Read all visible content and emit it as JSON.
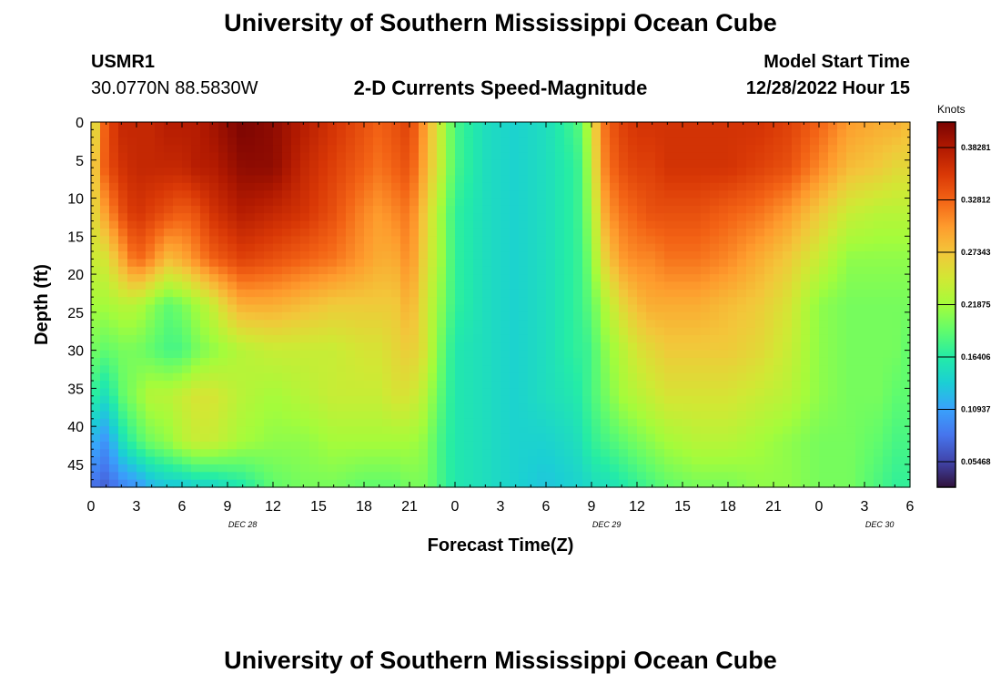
{
  "header": {
    "title": "University of Southern Mississippi Ocean Cube",
    "station_id": "USMR1",
    "station_coords": "30.0770N  88.5830W",
    "subtitle": "2-D Currents Speed-Magnitude",
    "model_start_label": "Model Start Time",
    "model_start_value": "12/28/2022 Hour 15"
  },
  "footer": {
    "title_repeat": "University of Southern Mississippi Ocean Cube"
  },
  "chart_data": {
    "type": "heatmap",
    "title": "2-D Currents Speed-Magnitude",
    "xlabel": "Forecast Time(Z)",
    "ylabel": "Depth (ft)",
    "x_start": "12/28/2022 00Z",
    "x_tick_labels": [
      "0",
      "3",
      "6",
      "9",
      "12",
      "15",
      "18",
      "21",
      "0",
      "3",
      "6",
      "9",
      "12",
      "15",
      "18",
      "21",
      "0",
      "3",
      "6"
    ],
    "x_date_labels": [
      {
        "label": "DEC 28",
        "hour": 10
      },
      {
        "label": "DEC 29",
        "hour": 34
      },
      {
        "label": "DEC 30",
        "hour": 52
      }
    ],
    "xlim": [
      0,
      54
    ],
    "y_ticks": [
      0,
      5,
      10,
      15,
      20,
      25,
      30,
      35,
      40,
      45
    ],
    "ylim": [
      0,
      48
    ],
    "y_inverted": true,
    "colorbar": {
      "units": "Knots",
      "tick_labels": [
        "0.38281",
        "0.32812",
        "0.27343",
        "0.21875",
        "0.16406",
        "0.10937",
        "0.05468"
      ],
      "min": 0.0273,
      "max": 0.4102,
      "colors": [
        "#30123b",
        "#4145ab",
        "#4675ed",
        "#39a2fc",
        "#1bcfd4",
        "#24eca6",
        "#61fc6c",
        "#a4fc3b",
        "#d1e834",
        "#f3c63a",
        "#fe9b2d",
        "#f36315",
        "#d93806",
        "#b11901",
        "#7a0402"
      ]
    },
    "depths_ft": [
      0,
      6,
      12,
      18,
      24,
      30,
      36,
      42,
      48
    ],
    "hours": [
      0,
      1,
      2,
      3,
      4,
      5,
      6,
      7,
      8,
      9,
      10,
      12,
      14,
      16,
      18,
      19,
      20,
      21,
      22,
      23,
      24,
      26,
      28,
      30,
      32,
      32.5,
      33,
      34,
      35,
      36,
      37,
      38,
      40,
      42,
      44,
      46,
      48,
      50,
      52,
      53,
      54
    ],
    "speed_knots": [
      [
        0.23,
        0.25,
        0.25,
        0.24,
        0.22,
        0.2,
        0.17,
        0.12,
        0.08
      ],
      [
        0.34,
        0.34,
        0.3,
        0.25,
        0.22,
        0.19,
        0.15,
        0.1,
        0.07
      ],
      [
        0.37,
        0.36,
        0.34,
        0.29,
        0.23,
        0.2,
        0.19,
        0.15,
        0.09
      ],
      [
        0.37,
        0.37,
        0.36,
        0.33,
        0.23,
        0.2,
        0.21,
        0.18,
        0.1
      ],
      [
        0.37,
        0.37,
        0.35,
        0.31,
        0.21,
        0.19,
        0.23,
        0.2,
        0.12
      ],
      [
        0.38,
        0.37,
        0.34,
        0.28,
        0.19,
        0.18,
        0.23,
        0.21,
        0.13
      ],
      [
        0.38,
        0.37,
        0.33,
        0.29,
        0.2,
        0.18,
        0.24,
        0.23,
        0.13
      ],
      [
        0.38,
        0.38,
        0.34,
        0.31,
        0.22,
        0.2,
        0.25,
        0.24,
        0.14
      ],
      [
        0.39,
        0.38,
        0.36,
        0.33,
        0.24,
        0.21,
        0.25,
        0.24,
        0.14
      ],
      [
        0.4,
        0.39,
        0.37,
        0.34,
        0.27,
        0.22,
        0.24,
        0.23,
        0.15
      ],
      [
        0.41,
        0.4,
        0.38,
        0.35,
        0.29,
        0.23,
        0.23,
        0.22,
        0.16
      ],
      [
        0.4,
        0.4,
        0.37,
        0.34,
        0.29,
        0.24,
        0.22,
        0.21,
        0.19
      ],
      [
        0.38,
        0.37,
        0.36,
        0.33,
        0.28,
        0.24,
        0.23,
        0.21,
        0.2
      ],
      [
        0.36,
        0.35,
        0.34,
        0.32,
        0.27,
        0.24,
        0.24,
        0.22,
        0.2
      ],
      [
        0.34,
        0.33,
        0.31,
        0.3,
        0.27,
        0.25,
        0.24,
        0.22,
        0.19
      ],
      [
        0.33,
        0.32,
        0.3,
        0.29,
        0.27,
        0.25,
        0.24,
        0.22,
        0.19
      ],
      [
        0.34,
        0.33,
        0.31,
        0.29,
        0.27,
        0.26,
        0.25,
        0.22,
        0.19
      ],
      [
        0.35,
        0.34,
        0.32,
        0.31,
        0.29,
        0.27,
        0.25,
        0.22,
        0.2
      ],
      [
        0.3,
        0.29,
        0.27,
        0.26,
        0.25,
        0.25,
        0.23,
        0.21,
        0.2
      ],
      [
        0.24,
        0.24,
        0.22,
        0.22,
        0.21,
        0.2,
        0.19,
        0.18,
        0.18
      ],
      [
        0.18,
        0.18,
        0.17,
        0.17,
        0.17,
        0.16,
        0.16,
        0.16,
        0.16
      ],
      [
        0.15,
        0.15,
        0.15,
        0.15,
        0.15,
        0.15,
        0.15,
        0.15,
        0.15
      ],
      [
        0.14,
        0.14,
        0.14,
        0.14,
        0.14,
        0.14,
        0.14,
        0.14,
        0.14
      ],
      [
        0.15,
        0.15,
        0.15,
        0.15,
        0.15,
        0.15,
        0.15,
        0.14,
        0.13
      ],
      [
        0.18,
        0.17,
        0.17,
        0.17,
        0.17,
        0.17,
        0.16,
        0.15,
        0.14
      ],
      [
        0.2,
        0.19,
        0.19,
        0.18,
        0.18,
        0.17,
        0.17,
        0.16,
        0.14
      ],
      [
        0.25,
        0.24,
        0.22,
        0.21,
        0.19,
        0.18,
        0.18,
        0.17,
        0.15
      ],
      [
        0.33,
        0.32,
        0.3,
        0.27,
        0.23,
        0.21,
        0.2,
        0.18,
        0.15
      ],
      [
        0.35,
        0.34,
        0.32,
        0.3,
        0.26,
        0.23,
        0.22,
        0.19,
        0.16
      ],
      [
        0.36,
        0.35,
        0.33,
        0.31,
        0.28,
        0.25,
        0.23,
        0.2,
        0.17
      ],
      [
        0.36,
        0.35,
        0.34,
        0.31,
        0.29,
        0.26,
        0.24,
        0.21,
        0.18
      ],
      [
        0.36,
        0.36,
        0.34,
        0.32,
        0.29,
        0.27,
        0.25,
        0.22,
        0.19
      ],
      [
        0.36,
        0.36,
        0.34,
        0.32,
        0.29,
        0.27,
        0.25,
        0.23,
        0.2
      ],
      [
        0.36,
        0.36,
        0.33,
        0.31,
        0.28,
        0.27,
        0.25,
        0.23,
        0.2
      ],
      [
        0.36,
        0.35,
        0.32,
        0.29,
        0.27,
        0.26,
        0.24,
        0.22,
        0.21
      ],
      [
        0.35,
        0.34,
        0.3,
        0.27,
        0.25,
        0.24,
        0.23,
        0.21,
        0.21
      ],
      [
        0.33,
        0.31,
        0.27,
        0.24,
        0.21,
        0.21,
        0.21,
        0.2,
        0.2
      ],
      [
        0.3,
        0.28,
        0.24,
        0.21,
        0.2,
        0.2,
        0.2,
        0.2,
        0.2
      ],
      [
        0.29,
        0.27,
        0.23,
        0.21,
        0.2,
        0.2,
        0.2,
        0.19,
        0.18
      ],
      [
        0.29,
        0.26,
        0.23,
        0.21,
        0.2,
        0.2,
        0.19,
        0.18,
        0.17
      ],
      [
        0.28,
        0.26,
        0.23,
        0.21,
        0.2,
        0.19,
        0.19,
        0.18,
        0.17
      ]
    ]
  }
}
